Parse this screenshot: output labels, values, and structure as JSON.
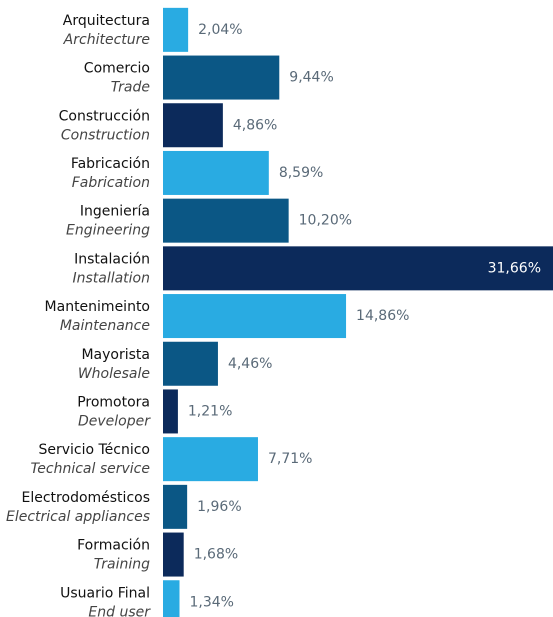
{
  "chart_data": {
    "type": "bar",
    "orientation": "horizontal",
    "categories": [
      "Arquitectura",
      "Comercio",
      "Construcción",
      "Fabricación",
      "Ingeniería",
      "Instalación",
      "Mantenimeinto",
      "Mayorista",
      "Promotora",
      "Servicio Técnico",
      "Electrodomésticos",
      "Formación",
      "Usuario Final"
    ],
    "categories_en": [
      "Architecture",
      "Trade",
      "Construction",
      "Fabrication",
      "Engineering",
      "Installation",
      "Maintenance",
      "Wholesale",
      "Developer",
      "Technical service",
      "Electrical appliances",
      "Training",
      "End user"
    ],
    "values": [
      2.04,
      9.44,
      4.86,
      8.59,
      10.2,
      31.66,
      14.86,
      4.46,
      1.21,
      7.71,
      1.96,
      1.68,
      1.34
    ],
    "value_labels": [
      "2,04%",
      "9,44%",
      "4,86%",
      "8,59%",
      "10,20%",
      "31,66%",
      "14,86%",
      "4,46%",
      "1,21%",
      "7,71%",
      "1,96%",
      "1,68%",
      "1,34%"
    ],
    "colors": [
      "#29abe2",
      "#0b5785",
      "#0c2a5b",
      "#29abe2",
      "#0b5785",
      "#0c2a5b",
      "#29abe2",
      "#0b5785",
      "#0c2a5b",
      "#29abe2",
      "#0b5785",
      "#0c2a5b",
      "#29abe2"
    ],
    "xlim": [
      0,
      31.66
    ]
  }
}
